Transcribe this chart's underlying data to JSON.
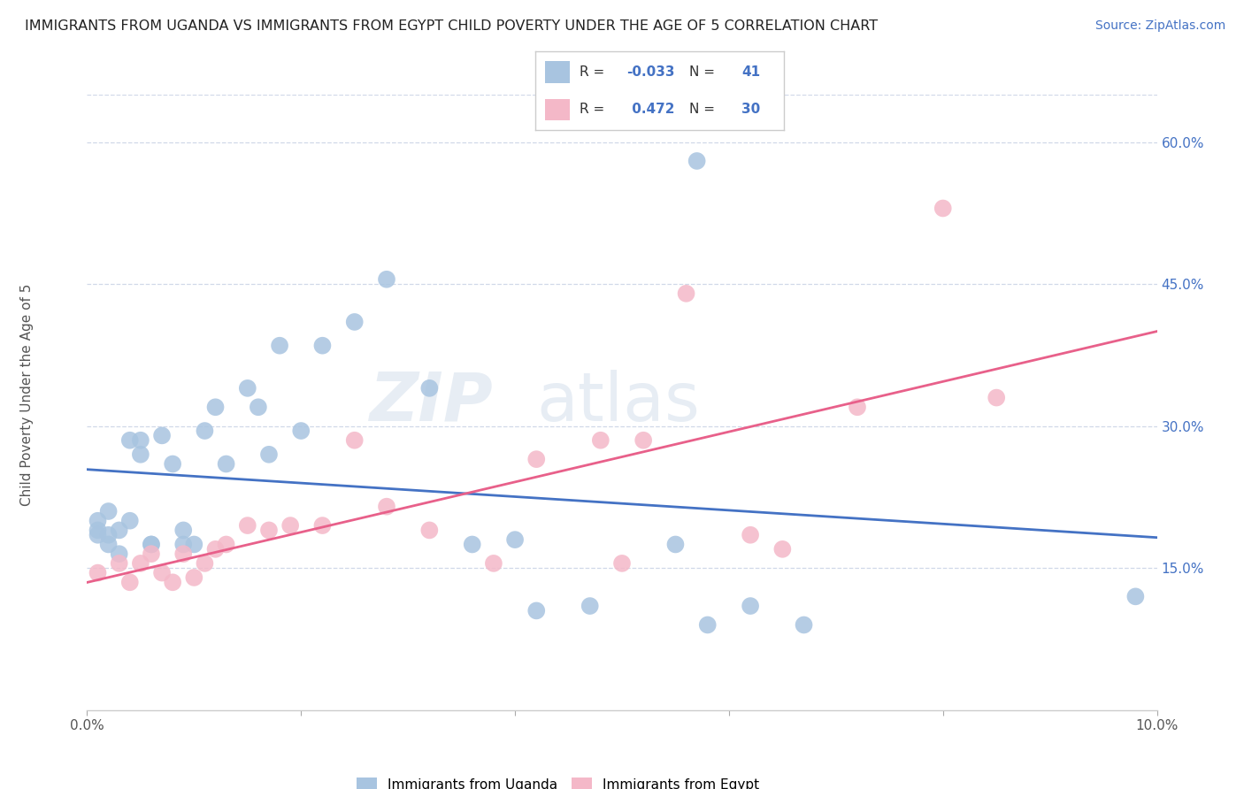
{
  "title": "IMMIGRANTS FROM UGANDA VS IMMIGRANTS FROM EGYPT CHILD POVERTY UNDER THE AGE OF 5 CORRELATION CHART",
  "source": "Source: ZipAtlas.com",
  "ylabel": "Child Poverty Under the Age of 5",
  "legend_label1": "Immigrants from Uganda",
  "legend_label2": "Immigrants from Egypt",
  "R1": -0.033,
  "N1": 41,
  "R2": 0.472,
  "N2": 30,
  "color_uganda": "#a8c4e0",
  "color_egypt": "#f4b8c8",
  "trend_color_uganda": "#4472c4",
  "trend_color_egypt": "#e8608a",
  "watermark_zip": "ZIP",
  "watermark_atlas": "atlas",
  "xrange": [
    0.0,
    0.1
  ],
  "yrange": [
    0.0,
    0.65
  ],
  "ytick_vals": [
    0.15,
    0.3,
    0.45,
    0.6
  ],
  "ytick_labels": [
    "15.0%",
    "30.0%",
    "45.0%",
    "60.0%"
  ],
  "xtick_vals": [
    0.0,
    0.02,
    0.04,
    0.06,
    0.08,
    0.1
  ],
  "uganda_x": [
    0.001,
    0.001,
    0.001,
    0.002,
    0.002,
    0.002,
    0.003,
    0.003,
    0.004,
    0.004,
    0.005,
    0.005,
    0.006,
    0.006,
    0.007,
    0.008,
    0.009,
    0.009,
    0.01,
    0.011,
    0.012,
    0.013,
    0.015,
    0.016,
    0.017,
    0.018,
    0.02,
    0.022,
    0.025,
    0.028,
    0.032,
    0.036,
    0.04,
    0.042,
    0.047,
    0.055,
    0.058,
    0.062,
    0.067,
    0.057,
    0.098
  ],
  "uganda_y": [
    0.2,
    0.19,
    0.185,
    0.21,
    0.185,
    0.175,
    0.19,
    0.165,
    0.285,
    0.2,
    0.285,
    0.27,
    0.175,
    0.175,
    0.29,
    0.26,
    0.175,
    0.19,
    0.175,
    0.295,
    0.32,
    0.26,
    0.34,
    0.32,
    0.27,
    0.385,
    0.295,
    0.385,
    0.41,
    0.455,
    0.34,
    0.175,
    0.18,
    0.105,
    0.11,
    0.175,
    0.09,
    0.11,
    0.09,
    0.58,
    0.12
  ],
  "egypt_x": [
    0.001,
    0.003,
    0.004,
    0.005,
    0.006,
    0.007,
    0.008,
    0.009,
    0.01,
    0.011,
    0.012,
    0.013,
    0.015,
    0.017,
    0.019,
    0.022,
    0.025,
    0.028,
    0.032,
    0.038,
    0.042,
    0.048,
    0.05,
    0.052,
    0.056,
    0.062,
    0.065,
    0.072,
    0.08,
    0.085
  ],
  "egypt_y": [
    0.145,
    0.155,
    0.135,
    0.155,
    0.165,
    0.145,
    0.135,
    0.165,
    0.14,
    0.155,
    0.17,
    0.175,
    0.195,
    0.19,
    0.195,
    0.195,
    0.285,
    0.215,
    0.19,
    0.155,
    0.265,
    0.285,
    0.155,
    0.285,
    0.44,
    0.185,
    0.17,
    0.32,
    0.53,
    0.33
  ]
}
